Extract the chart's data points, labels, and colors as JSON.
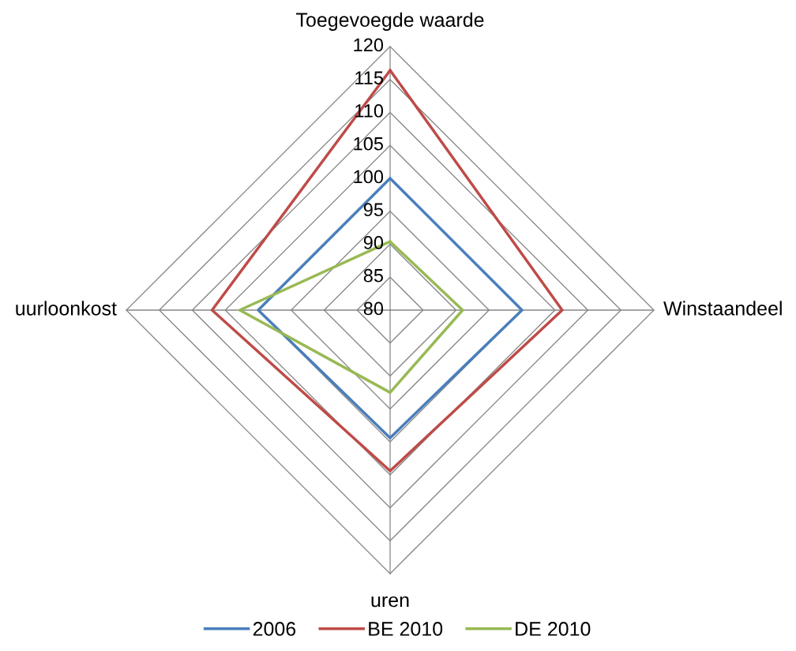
{
  "chart_data": {
    "type": "radar",
    "categories": [
      "Toegevoegde waarde",
      "Winstaandeel",
      "uren",
      "uurloonkost"
    ],
    "series": [
      {
        "name": "2006",
        "color": "#4a7ebb",
        "values": [
          100,
          100,
          99.4,
          100
        ]
      },
      {
        "name": "BE 2010",
        "color": "#be4b48",
        "values": [
          116.4,
          106.1,
          104.4,
          107
        ]
      },
      {
        "name": "DE 2010",
        "color": "#98b954",
        "values": [
          90.4,
          91,
          92.5,
          102.8
        ]
      }
    ],
    "ylim": [
      80,
      120
    ],
    "yticks": [
      80,
      85,
      90,
      95,
      100,
      105,
      110,
      115,
      120
    ],
    "grid": true,
    "legend": "bottom",
    "marker": "none"
  }
}
